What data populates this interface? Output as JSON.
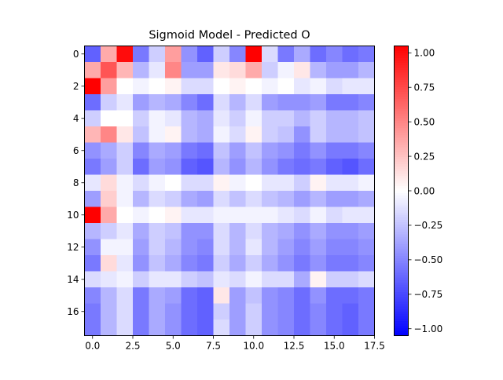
{
  "chart_data": {
    "type": "heatmap",
    "title": "Sigmoid Model - Predicted O",
    "xlabel": "",
    "ylabel": "",
    "rows": 18,
    "cols": 18,
    "xlim": [
      -0.5,
      17.5
    ],
    "ylim": [
      17.5,
      -0.5
    ],
    "x_ticks": [
      0.0,
      2.5,
      5.0,
      7.5,
      10.0,
      12.5,
      15.0,
      17.5
    ],
    "x_tick_labels": [
      "0.0",
      "2.5",
      "5.0",
      "7.5",
      "10.0",
      "12.5",
      "15.0",
      "17.5"
    ],
    "y_ticks": [
      0,
      2,
      4,
      6,
      8,
      10,
      12,
      14,
      16
    ],
    "y_tick_labels": [
      "0",
      "2",
      "4",
      "6",
      "8",
      "10",
      "12",
      "14",
      "16"
    ],
    "colormap": "bwr",
    "vmin": -1.05,
    "vmax": 1.05,
    "colorbar_ticks": [
      1.0,
      0.75,
      0.5,
      0.25,
      0.0,
      -0.25,
      -0.5,
      -0.75,
      -1.0
    ],
    "colorbar_tick_labels": [
      "1.00",
      "0.75",
      "0.50",
      "0.25",
      "0.00",
      "−0.25",
      "−0.50",
      "−0.75",
      "−1.00"
    ],
    "values": [
      [
        -0.65,
        0.35,
        1.0,
        -0.55,
        -0.2,
        0.4,
        -0.45,
        -0.65,
        -0.2,
        -0.5,
        1.05,
        -0.15,
        -0.55,
        -0.35,
        -0.6,
        -0.5,
        -0.6,
        -0.55
      ],
      [
        0.35,
        0.7,
        0.3,
        -0.3,
        -0.1,
        0.5,
        -0.4,
        -0.4,
        0.1,
        0.15,
        0.35,
        -0.2,
        -0.05,
        0.1,
        -0.3,
        -0.4,
        -0.4,
        -0.3
      ],
      [
        1.05,
        0.4,
        0.0,
        -0.05,
        0.0,
        0.05,
        -0.15,
        -0.15,
        0.0,
        0.05,
        0.0,
        -0.05,
        0.0,
        -0.1,
        -0.05,
        -0.15,
        -0.1,
        -0.1
      ],
      [
        -0.6,
        -0.2,
        -0.1,
        -0.4,
        -0.3,
        -0.35,
        -0.5,
        -0.6,
        -0.15,
        -0.3,
        -0.15,
        -0.4,
        -0.45,
        -0.45,
        -0.4,
        -0.55,
        -0.55,
        -0.5
      ],
      [
        -0.2,
        0.0,
        0.0,
        -0.2,
        -0.05,
        -0.1,
        -0.3,
        -0.35,
        -0.1,
        -0.2,
        -0.05,
        -0.2,
        -0.2,
        -0.3,
        -0.2,
        -0.3,
        -0.3,
        -0.25
      ],
      [
        0.3,
        0.5,
        0.1,
        -0.25,
        -0.05,
        0.05,
        -0.3,
        -0.35,
        -0.05,
        -0.15,
        0.05,
        -0.2,
        -0.25,
        -0.45,
        -0.2,
        -0.3,
        -0.3,
        -0.25
      ],
      [
        -0.45,
        -0.35,
        -0.2,
        -0.5,
        -0.35,
        -0.4,
        -0.55,
        -0.6,
        -0.25,
        -0.4,
        -0.25,
        -0.4,
        -0.45,
        -0.55,
        -0.45,
        -0.55,
        -0.55,
        -0.5
      ],
      [
        -0.55,
        -0.4,
        -0.2,
        -0.6,
        -0.4,
        -0.45,
        -0.65,
        -0.7,
        -0.3,
        -0.45,
        -0.3,
        -0.45,
        -0.55,
        -0.6,
        -0.55,
        -0.65,
        -0.7,
        -0.6
      ],
      [
        -0.1,
        0.15,
        -0.05,
        -0.15,
        -0.05,
        0.0,
        -0.15,
        -0.15,
        0.05,
        -0.05,
        0.0,
        -0.1,
        -0.1,
        -0.2,
        0.05,
        -0.1,
        -0.1,
        -0.05
      ],
      [
        -0.4,
        0.2,
        -0.05,
        -0.3,
        -0.15,
        -0.2,
        -0.35,
        -0.4,
        -0.15,
        -0.25,
        -0.15,
        -0.25,
        -0.3,
        -0.4,
        -0.3,
        -0.4,
        -0.4,
        -0.35
      ],
      [
        1.05,
        0.35,
        0.0,
        -0.05,
        0.0,
        0.05,
        -0.1,
        -0.1,
        -0.05,
        -0.05,
        -0.05,
        -0.05,
        -0.1,
        -0.15,
        -0.05,
        -0.15,
        -0.1,
        -0.1
      ],
      [
        -0.3,
        -0.2,
        -0.1,
        -0.35,
        -0.2,
        -0.25,
        -0.45,
        -0.45,
        -0.15,
        -0.3,
        -0.15,
        -0.3,
        -0.35,
        -0.45,
        -0.35,
        -0.45,
        -0.45,
        -0.4
      ],
      [
        -0.45,
        -0.05,
        -0.05,
        -0.4,
        -0.2,
        -0.3,
        -0.45,
        -0.5,
        -0.15,
        -0.3,
        -0.1,
        -0.3,
        -0.4,
        -0.5,
        -0.4,
        -0.5,
        -0.5,
        -0.45
      ],
      [
        -0.55,
        0.15,
        -0.1,
        -0.45,
        -0.25,
        -0.35,
        -0.5,
        -0.55,
        -0.2,
        -0.35,
        -0.2,
        -0.35,
        -0.45,
        -0.55,
        -0.45,
        -0.55,
        -0.55,
        -0.5
      ],
      [
        -0.15,
        -0.1,
        -0.05,
        -0.2,
        -0.1,
        -0.1,
        -0.2,
        -0.25,
        -0.1,
        -0.15,
        -0.05,
        -0.15,
        -0.15,
        -0.35,
        0.05,
        -0.2,
        -0.2,
        -0.15
      ],
      [
        -0.5,
        -0.3,
        -0.15,
        -0.55,
        -0.35,
        -0.4,
        -0.6,
        -0.65,
        0.1,
        -0.4,
        -0.25,
        -0.45,
        -0.5,
        -0.6,
        -0.45,
        -0.6,
        -0.6,
        -0.55
      ],
      [
        -0.55,
        -0.3,
        -0.15,
        -0.55,
        -0.35,
        -0.45,
        -0.6,
        -0.65,
        -0.2,
        -0.4,
        -0.2,
        -0.45,
        -0.5,
        -0.6,
        -0.5,
        -0.6,
        -0.65,
        -0.55
      ],
      [
        -0.55,
        -0.3,
        -0.15,
        -0.55,
        -0.35,
        -0.45,
        -0.6,
        -0.65,
        -0.15,
        -0.4,
        -0.2,
        -0.45,
        -0.5,
        -0.6,
        -0.5,
        -0.6,
        -0.65,
        -0.55
      ]
    ]
  }
}
